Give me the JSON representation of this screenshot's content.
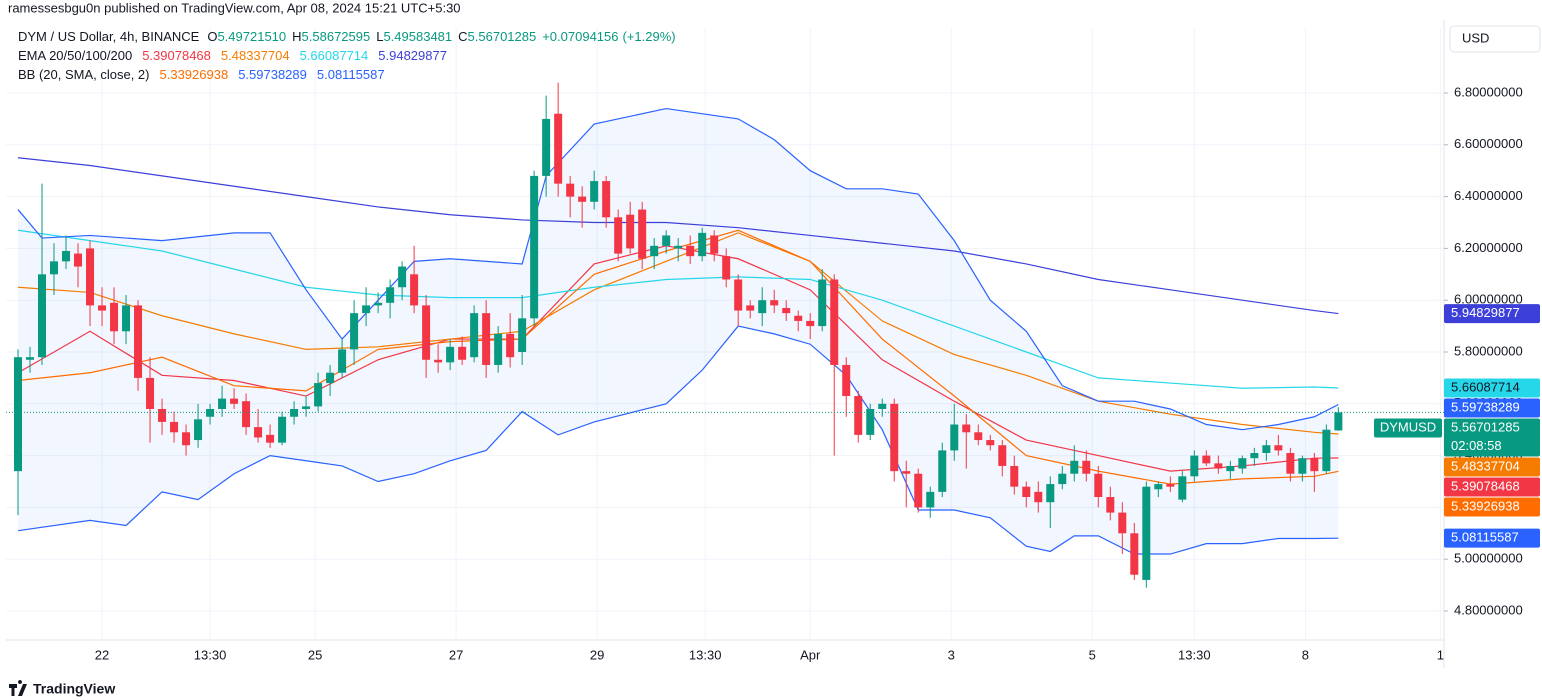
{
  "published": "ramessesbgu0n published on TradingView.com, Apr 08, 2024 15:21 UTC+5:30",
  "footer": "TradingView",
  "chart_data": {
    "type": "candlestick",
    "symbol": "DYM / US Dollar, 4h, BINANCE",
    "ohlc_keys": [
      "O",
      "H",
      "L",
      "C"
    ],
    "last_value_labels": {
      "open": "5.49721510"
    },
    "change": 0.07094156,
    "change_label": "+0.07094156",
    "change_percent": 1.29,
    "change_percent_label": "(+1.29%)",
    "currency": "USD",
    "symbol_badge": "DYMUSD",
    "countdown": "02:08:58",
    "up_color": "#089981",
    "down_color": "#f23645",
    "band_fill": "rgba(41,98,255,0.06)",
    "open": [
      5.34,
      5.77,
      5.78,
      6.1,
      6.15,
      6.18,
      6.2,
      5.98,
      5.99,
      5.88,
      5.98,
      5.7,
      5.58,
      5.53,
      5.49,
      5.46,
      5.55,
      5.58,
      5.62,
      5.61,
      5.51,
      5.48,
      5.45,
      5.55,
      5.58,
      5.59,
      5.68,
      5.72,
      5.81,
      5.95,
      5.98,
      5.99,
      6.05,
      6.1,
      5.98,
      5.77,
      5.76,
      5.82,
      5.78,
      5.95,
      5.75,
      5.87,
      5.8,
      5.93,
      6.48,
      6.72,
      6.45,
      6.4,
      6.38,
      6.46,
      6.32,
      6.33,
      6.35,
      6.17,
      6.21,
      6.2,
      6.21,
      6.17,
      6.25,
      6.17,
      6.08,
      5.98,
      5.95,
      6.0,
      5.97,
      5.94,
      5.92,
      5.9,
      6.08,
      5.75,
      5.63,
      5.48,
      5.58,
      5.6,
      5.34,
      5.33,
      5.2,
      5.26,
      5.42,
      5.52,
      5.49,
      5.46,
      5.44,
      5.36,
      5.28,
      5.26,
      5.22,
      5.29,
      5.33,
      5.38,
      5.33,
      5.24,
      5.18,
      5.1,
      4.92,
      5.27,
      5.29,
      5.23,
      5.32,
      5.4,
      5.37,
      5.34,
      5.35,
      5.39,
      5.41,
      5.44,
      5.41,
      5.33,
      5.39,
      5.34,
      5.4972151
    ],
    "high": [
      5.81,
      5.82,
      6.45,
      6.22,
      6.25,
      6.22,
      6.23,
      6.05,
      6.05,
      6.02,
      6.0,
      5.78,
      5.62,
      5.57,
      5.52,
      5.6,
      5.6,
      5.67,
      5.66,
      5.64,
      5.58,
      5.52,
      5.57,
      5.61,
      5.63,
      5.72,
      5.75,
      5.85,
      6.0,
      6.05,
      6.03,
      6.08,
      6.15,
      6.21,
      6.02,
      5.83,
      5.85,
      5.86,
      5.98,
      6.0,
      5.9,
      5.95,
      6.02,
      6.5,
      6.79,
      6.84,
      6.48,
      6.44,
      6.5,
      6.48,
      6.35,
      6.38,
      6.38,
      6.24,
      6.27,
      6.24,
      6.25,
      6.28,
      6.27,
      6.2,
      6.1,
      6.0,
      6.05,
      6.04,
      6.0,
      5.96,
      5.95,
      6.12,
      6.1,
      5.78,
      5.65,
      5.6,
      5.62,
      5.62,
      5.38,
      5.35,
      5.28,
      5.45,
      5.6,
      5.56,
      5.52,
      5.48,
      5.46,
      5.4,
      5.3,
      5.3,
      5.32,
      5.36,
      5.44,
      5.42,
      5.36,
      5.28,
      5.22,
      5.14,
      5.3,
      5.3,
      5.32,
      5.34,
      5.42,
      5.42,
      5.4,
      5.38,
      5.4,
      5.43,
      5.46,
      5.48,
      5.43,
      5.4,
      5.41,
      5.52,
      5.58672595
    ],
    "low": [
      5.17,
      5.72,
      5.75,
      6.02,
      6.12,
      6.05,
      5.9,
      5.9,
      5.83,
      5.83,
      5.65,
      5.45,
      5.48,
      5.45,
      5.4,
      5.43,
      5.52,
      5.55,
      5.58,
      5.48,
      5.45,
      5.43,
      5.44,
      5.52,
      5.55,
      5.57,
      5.63,
      5.7,
      5.75,
      5.9,
      5.95,
      5.93,
      6.0,
      5.95,
      5.7,
      5.72,
      5.73,
      5.75,
      5.76,
      5.7,
      5.72,
      5.74,
      5.75,
      5.9,
      6.4,
      6.4,
      6.32,
      6.28,
      6.35,
      6.28,
      6.15,
      6.18,
      6.12,
      6.12,
      6.18,
      6.15,
      6.14,
      6.15,
      6.15,
      6.05,
      5.9,
      5.93,
      5.9,
      5.95,
      5.92,
      5.88,
      5.85,
      5.88,
      5.4,
      5.55,
      5.45,
      5.46,
      5.55,
      5.3,
      5.2,
      5.18,
      5.16,
      5.24,
      5.38,
      5.35,
      5.44,
      5.42,
      5.32,
      5.25,
      5.2,
      5.18,
      5.12,
      5.27,
      5.3,
      5.3,
      5.2,
      5.15,
      5.02,
      4.92,
      4.89,
      5.24,
      5.26,
      5.22,
      5.3,
      5.36,
      5.33,
      5.31,
      5.33,
      5.36,
      5.38,
      5.4,
      5.3,
      5.3,
      5.26,
      5.33,
      5.49583481
    ],
    "close": [
      5.78,
      5.78,
      6.1,
      6.15,
      6.19,
      6.13,
      5.98,
      5.96,
      5.88,
      5.98,
      5.7,
      5.58,
      5.53,
      5.49,
      5.44,
      5.54,
      5.58,
      5.62,
      5.6,
      5.51,
      5.47,
      5.45,
      5.55,
      5.58,
      5.59,
      5.68,
      5.72,
      5.81,
      5.95,
      5.98,
      5.99,
      6.05,
      6.13,
      5.98,
      5.77,
      5.76,
      5.82,
      5.77,
      5.95,
      5.75,
      5.87,
      5.78,
      5.93,
      6.48,
      6.7,
      6.45,
      6.4,
      6.38,
      6.46,
      6.32,
      6.18,
      6.2,
      6.16,
      6.21,
      6.25,
      6.21,
      6.17,
      6.26,
      6.18,
      6.08,
      5.96,
      5.96,
      6.0,
      5.98,
      5.95,
      5.92,
      5.9,
      6.08,
      5.75,
      5.63,
      5.48,
      5.58,
      5.6,
      5.34,
      5.33,
      5.2,
      5.26,
      5.42,
      5.52,
      5.49,
      5.46,
      5.44,
      5.36,
      5.28,
      5.24,
      5.22,
      5.29,
      5.33,
      5.38,
      5.33,
      5.24,
      5.18,
      5.1,
      4.94,
      5.28,
      5.29,
      5.28,
      5.32,
      5.4,
      5.37,
      5.35,
      5.36,
      5.39,
      5.41,
      5.44,
      5.42,
      5.33,
      5.39,
      5.34,
      5.5,
      5.56701285
    ],
    "series": [
      {
        "color": "#f23645",
        "text_color": "#ffffff",
        "x": [
          0,
          6,
          12,
          18,
          24,
          30,
          36,
          42,
          48,
          54,
          60,
          66,
          72,
          78,
          84,
          90,
          96,
          102,
          108,
          110
        ],
        "values": [
          5.72,
          5.88,
          5.71,
          5.69,
          5.63,
          5.77,
          5.85,
          5.85,
          6.14,
          6.21,
          6.16,
          6.04,
          5.77,
          5.61,
          5.46,
          5.4,
          5.34,
          5.36,
          5.39,
          5.39078468
        ]
      },
      {
        "color": "#f57c00",
        "text_color": "#ffffff",
        "x": [
          0,
          6,
          12,
          18,
          24,
          30,
          36,
          42,
          48,
          54,
          60,
          66,
          72,
          78,
          84,
          90,
          96,
          102,
          108,
          110
        ],
        "values": [
          6.05,
          6.03,
          5.94,
          5.87,
          5.81,
          5.82,
          5.85,
          5.88,
          6.04,
          6.15,
          6.26,
          6.15,
          5.92,
          5.79,
          5.71,
          5.61,
          5.56,
          5.52,
          5.49,
          5.48337704
        ]
      },
      {
        "color": "#26d7ea",
        "text_color": "#131722",
        "x": [
          0,
          6,
          12,
          18,
          24,
          30,
          36,
          42,
          48,
          54,
          60,
          66,
          72,
          78,
          84,
          90,
          96,
          102,
          108,
          110
        ],
        "values": [
          6.27,
          6.23,
          6.19,
          6.12,
          6.05,
          6.02,
          6.01,
          6.01,
          6.05,
          6.08,
          6.09,
          6.08,
          6.0,
          5.9,
          5.8,
          5.7,
          5.68,
          5.66,
          5.665,
          5.66087714
        ]
      },
      {
        "color": "#3d3fd9",
        "text_color": "#ffffff",
        "x": [
          0,
          6,
          12,
          18,
          24,
          30,
          36,
          42,
          48,
          54,
          60,
          66,
          72,
          78,
          84,
          90,
          96,
          102,
          108,
          110
        ],
        "values": [
          6.55,
          6.52,
          6.48,
          6.44,
          6.4,
          6.36,
          6.33,
          6.31,
          6.3,
          6.3,
          6.28,
          6.25,
          6.22,
          6.19,
          6.14,
          6.08,
          6.04,
          6.0,
          5.96,
          5.94829877
        ]
      },
      {
        "color": "#ff6d00",
        "text_color": "#ffffff",
        "x": [
          0,
          6,
          12,
          18,
          24,
          30,
          36,
          42,
          48,
          54,
          60,
          66,
          72,
          78,
          84,
          90,
          96,
          102,
          108,
          110
        ],
        "values": [
          5.69,
          5.72,
          5.78,
          5.67,
          5.65,
          5.81,
          5.84,
          5.85,
          6.1,
          6.19,
          6.27,
          6.15,
          5.85,
          5.63,
          5.4,
          5.34,
          5.29,
          5.31,
          5.32,
          5.33926938
        ]
      },
      {
        "color": "#2962ff",
        "text_color": "#ffffff",
        "x": [
          0,
          2,
          6,
          12,
          18,
          21,
          24,
          27,
          30,
          33,
          36,
          42,
          44,
          48,
          54,
          60,
          63,
          66,
          69,
          72,
          75,
          78,
          81,
          84,
          87,
          90,
          93,
          96,
          99,
          102,
          105,
          108,
          110
        ],
        "values": [
          6.35,
          6.24,
          6.25,
          6.23,
          6.26,
          6.26,
          6.04,
          5.85,
          6.0,
          6.15,
          6.16,
          6.14,
          6.48,
          6.68,
          6.74,
          6.7,
          6.62,
          6.5,
          6.43,
          6.43,
          6.41,
          6.23,
          6.0,
          5.88,
          5.67,
          5.61,
          5.61,
          5.58,
          5.52,
          5.5,
          5.52,
          5.55,
          5.59738289
        ]
      },
      {
        "color": "#2962ff",
        "text_color": "#ffffff",
        "x": [
          0,
          6,
          9,
          12,
          15,
          18,
          21,
          24,
          27,
          30,
          33,
          36,
          39,
          42,
          45,
          48,
          54,
          57,
          60,
          63,
          66,
          69,
          72,
          75,
          78,
          81,
          84,
          86,
          88,
          90,
          93,
          96,
          99,
          102,
          105,
          108,
          110
        ],
        "values": [
          5.11,
          5.15,
          5.13,
          5.26,
          5.23,
          5.33,
          5.4,
          5.38,
          5.36,
          5.3,
          5.33,
          5.38,
          5.42,
          5.57,
          5.48,
          5.53,
          5.6,
          5.73,
          5.9,
          5.87,
          5.83,
          5.71,
          5.5,
          5.19,
          5.19,
          5.16,
          5.05,
          5.03,
          5.09,
          5.09,
          5.02,
          5.02,
          5.06,
          5.06,
          5.08,
          5.08,
          5.08115587
        ]
      }
    ],
    "legend_groups": [
      {
        "label": "EMA 20/50/100/200",
        "series": [
          0,
          1,
          2,
          3
        ]
      },
      {
        "label": "BB (20, SMA, close, 2)",
        "series": [
          4,
          5,
          6
        ]
      }
    ],
    "band": [
      5,
      6
    ],
    "ylim": [
      4.688,
      7.051
    ],
    "yticks": [
      {
        "value": 4.8,
        "label": "4.80000000"
      },
      {
        "value": 5.0,
        "label": "5.00000000"
      },
      {
        "value": 5.2,
        "label": "5.20000000"
      },
      {
        "value": 5.4,
        "label": "5.40000000"
      },
      {
        "value": 5.6,
        "label": "5.60000000"
      },
      {
        "value": 5.8,
        "label": "5.80000000"
      },
      {
        "value": 6.0,
        "label": "6.00000000"
      },
      {
        "value": 6.2,
        "label": "6.20000000"
      },
      {
        "value": 6.4,
        "label": "6.40000000"
      },
      {
        "value": 6.6,
        "label": "6.60000000"
      },
      {
        "value": 6.8,
        "label": "6.80000000"
      }
    ],
    "xlim": [
      -1,
      118.8
    ],
    "xticks": [
      {
        "value": 7,
        "label": "22"
      },
      {
        "value": 16,
        "label": "13:30"
      },
      {
        "value": 24.75,
        "label": "25"
      },
      {
        "value": 36.5,
        "label": "27"
      },
      {
        "value": 48.25,
        "label": "29"
      },
      {
        "value": 57.25,
        "label": "13:30"
      },
      {
        "value": 66,
        "label": "Apr"
      },
      {
        "value": 77.75,
        "label": "3"
      },
      {
        "value": 89.5,
        "label": "5"
      },
      {
        "value": 98,
        "label": "13:30"
      },
      {
        "value": 107.25,
        "label": "8"
      },
      {
        "value": 118.5,
        "label": "1"
      }
    ],
    "grid": true
  }
}
